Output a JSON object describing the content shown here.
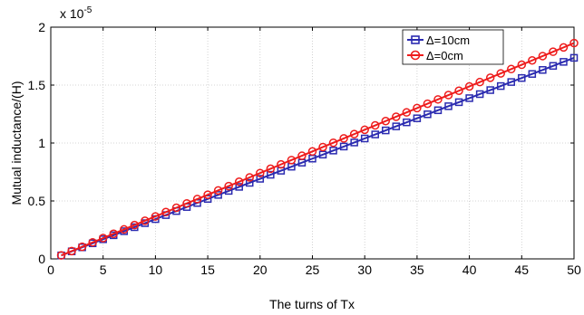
{
  "chart_data": {
    "type": "line",
    "xlabel": "The turns of Tx",
    "ylabel": "Mutual inductance/(H)",
    "multiplier_label": "x 10",
    "multiplier_exp": "-5",
    "xlim": [
      0,
      50
    ],
    "ylim": [
      0,
      2
    ],
    "xticks": [
      "0",
      "5",
      "10",
      "15",
      "20",
      "25",
      "30",
      "35",
      "40",
      "45",
      "50"
    ],
    "yticks": [
      "0",
      "0.5",
      "1",
      "1.5",
      "2"
    ],
    "grid": true,
    "legend_position": "top-right",
    "x": [
      1,
      2,
      3,
      4,
      5,
      6,
      7,
      8,
      9,
      10,
      11,
      12,
      13,
      14,
      15,
      16,
      17,
      18,
      19,
      20,
      21,
      22,
      23,
      24,
      25,
      26,
      27,
      28,
      29,
      30,
      31,
      32,
      33,
      34,
      35,
      36,
      37,
      38,
      39,
      40,
      41,
      42,
      43,
      44,
      45,
      46,
      47,
      48,
      49,
      50
    ],
    "series": [
      {
        "name": "Δ=10cm",
        "color": "#2b2bb0",
        "marker": "square",
        "slope": 0.0348,
        "intercept": -0.0048
      },
      {
        "name": "Δ=0cm",
        "color": "#ee1c1c",
        "marker": "circle",
        "slope": 0.0374,
        "intercept": -0.0074
      }
    ]
  }
}
